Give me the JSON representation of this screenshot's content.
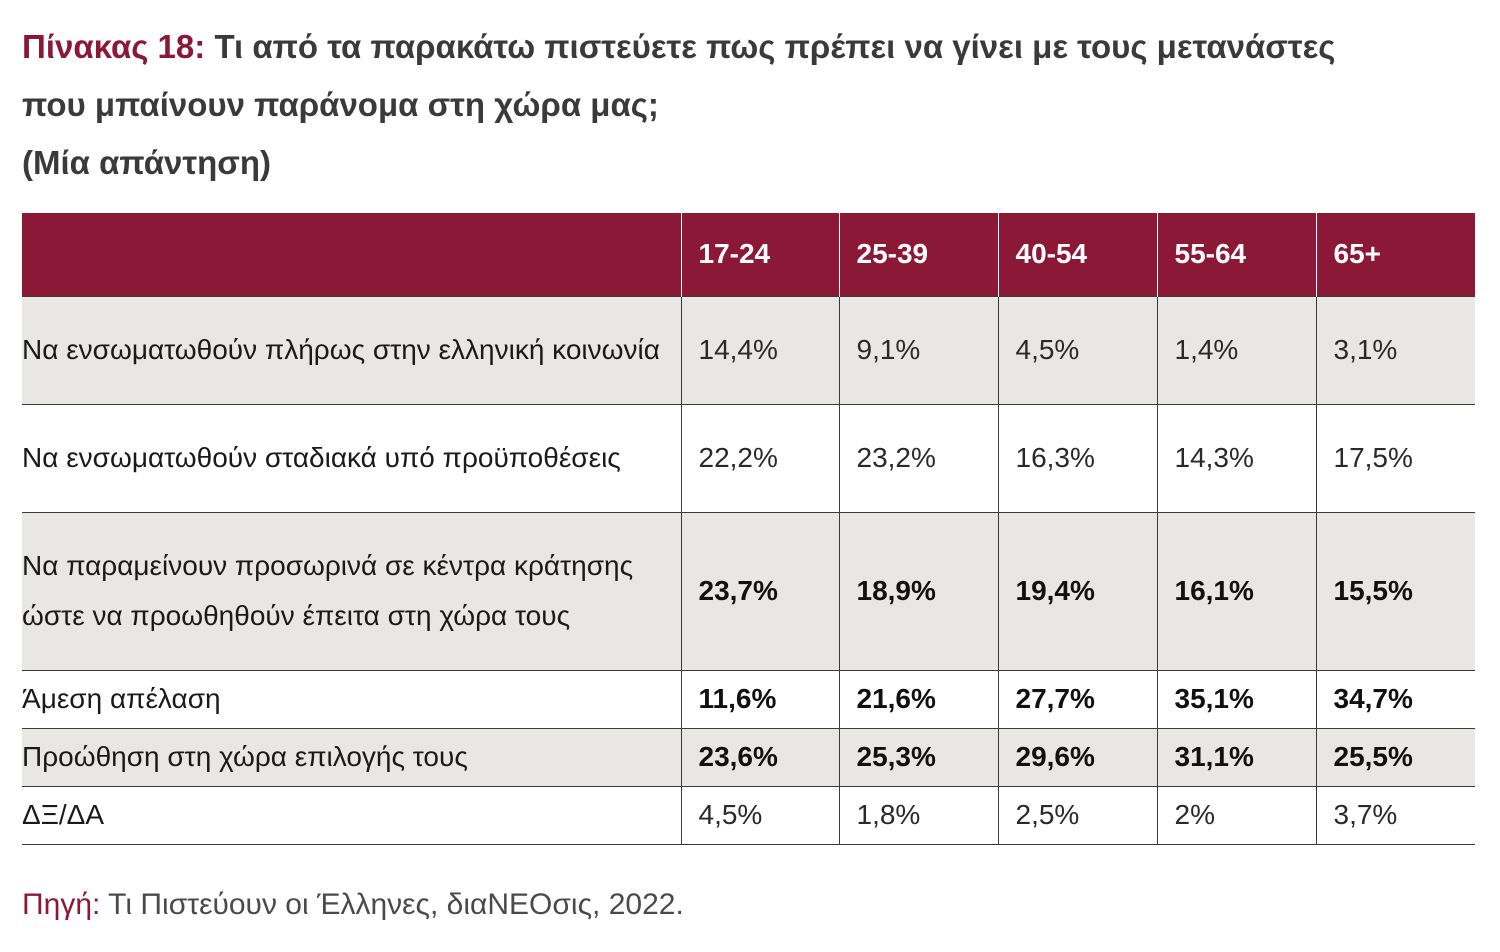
{
  "title": {
    "label": "Πίνακας 18:",
    "line1": "Τι από τα παρακάτω πιστεύετε πως πρέπει να γίνει με τους μετανάστες",
    "line2": "που μπαίνουν παράνομα στη χώρα μας;",
    "line3": "(Μία απάντηση)"
  },
  "table": {
    "headers": [
      "",
      "17-24",
      "25-39",
      "40-54",
      "55-64",
      "65+"
    ],
    "rows": [
      {
        "label": "Να ενσωματωθούν πλήρως στην ελληνική κοινωνία",
        "values": [
          "14,4%",
          "9,1%",
          "4,5%",
          "1,4%",
          "3,1%"
        ]
      },
      {
        "label": "Να ενσωματωθούν σταδιακά υπό προϋποθέσεις",
        "values": [
          "22,2%",
          "23,2%",
          "16,3%",
          "14,3%",
          "17,5%"
        ]
      },
      {
        "label": "Να παραμείνουν προσωρινά σε κέντρα κράτησης ώστε να προωθηθούν έπειτα στη χώρα τους",
        "values": [
          "23,7%",
          "18,9%",
          "19,4%",
          "16,1%",
          "15,5%"
        ]
      },
      {
        "label": "Άμεση απέλαση",
        "values": [
          "11,6%",
          "21,6%",
          "27,7%",
          "35,1%",
          "34,7%"
        ]
      },
      {
        "label": "Προώθηση στη χώρα επιλογής τους",
        "values": [
          "23,6%",
          "25,3%",
          "29,6%",
          "31,1%",
          "25,5%"
        ]
      },
      {
        "label": "ΔΞ/ΔΑ",
        "values": [
          "4,5%",
          "1,8%",
          "2,5%",
          "2%",
          "3,7%"
        ]
      }
    ]
  },
  "source": {
    "label": "Πηγή:",
    "text": " Τι Πιστεύουν οι Έλληνες, διαΝΕΟσις, 2022."
  },
  "colors": {
    "accent": "#8c1838",
    "row_shade": "#e9e7e3"
  }
}
